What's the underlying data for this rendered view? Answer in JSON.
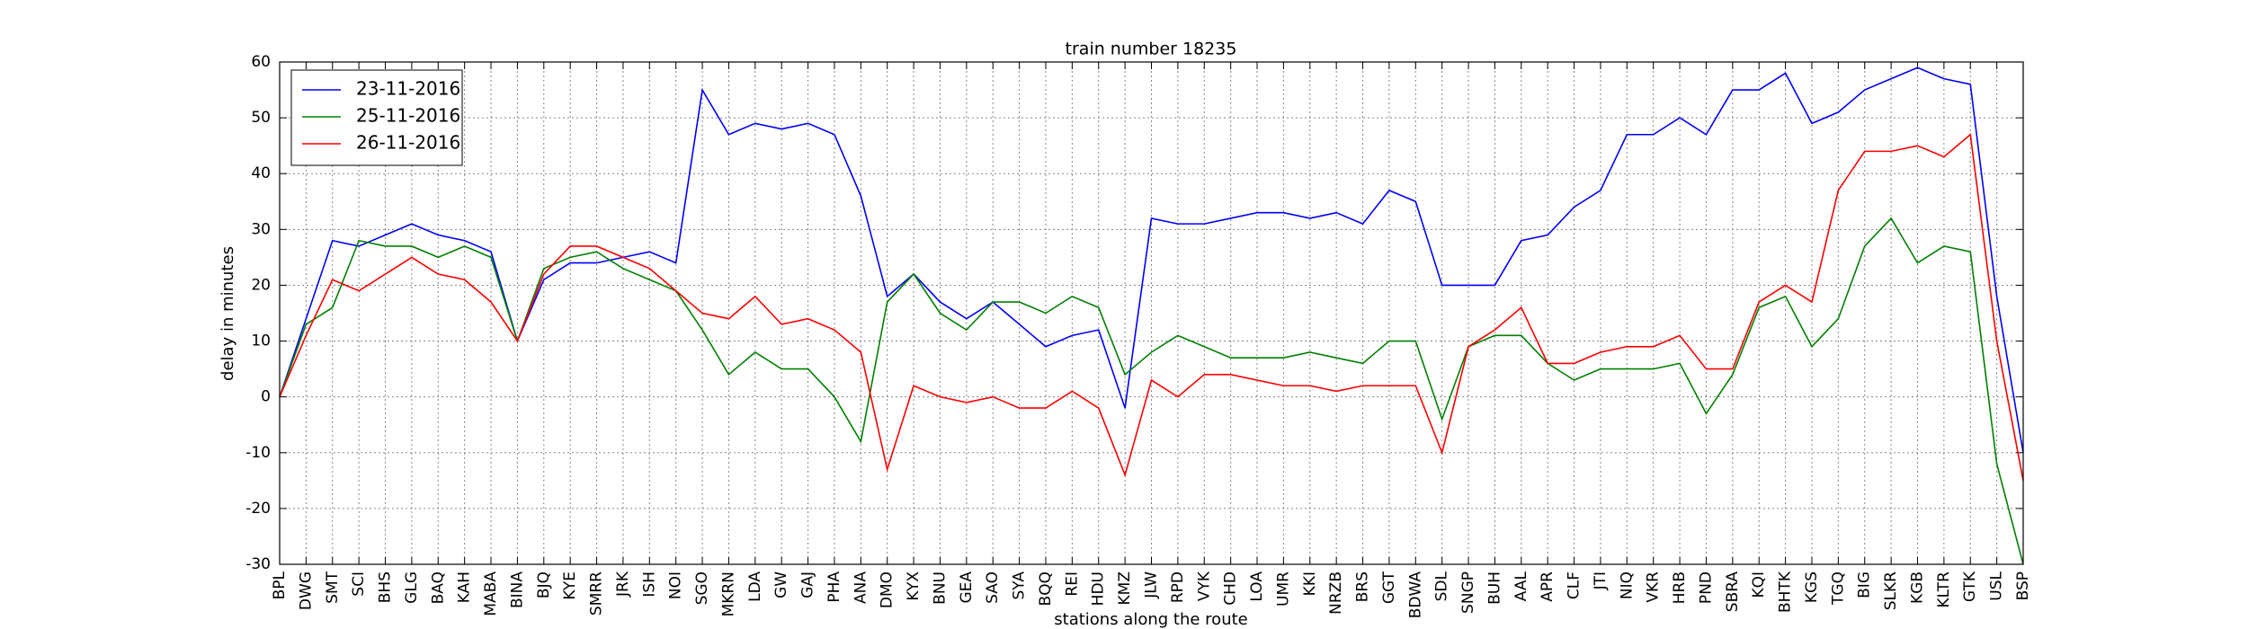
{
  "chart_data": {
    "type": "line",
    "title": "train number 18235",
    "x_label": "stations along the route",
    "y_label": "delay in minutes",
    "categories": [
      "BPL",
      "DWG",
      "SMT",
      "SCI",
      "BHS",
      "GLG",
      "BAQ",
      "KAH",
      "MABA",
      "BINA",
      "BJQ",
      "KYE",
      "SMRR",
      "JRK",
      "ISH",
      "NOI",
      "SGO",
      "MKRN",
      "LDA",
      "GW",
      "GAJ",
      "PHA",
      "ANA",
      "DMO",
      "KYX",
      "BNU",
      "GEA",
      "SAO",
      "SYA",
      "BQQ",
      "REI",
      "HDU",
      "KMZ",
      "JLW",
      "RPD",
      "VYK",
      "CHD",
      "LOA",
      "UMR",
      "KKI",
      "NRZB",
      "BRS",
      "GGT",
      "BDWA",
      "SDL",
      "SNGP",
      "BUH",
      "AAL",
      "APR",
      "CLF",
      "JTI",
      "NIQ",
      "VKR",
      "HRB",
      "PND",
      "SBRA",
      "KQI",
      "BHTK",
      "KGS",
      "TGQ",
      "BIG",
      "SLKR",
      "KGB",
      "KLTR",
      "GTK",
      "USL",
      "BSP"
    ],
    "series": [
      {
        "name": "23-11-2016",
        "color": "#0000ff",
        "values": [
          0,
          14,
          28,
          27,
          29,
          31,
          29,
          28,
          26,
          10,
          21,
          24,
          24,
          25,
          26,
          24,
          55,
          47,
          49,
          48,
          49,
          47,
          36,
          18,
          22,
          17,
          14,
          17,
          13,
          9,
          11,
          12,
          -2,
          32,
          31,
          31,
          32,
          33,
          33,
          32,
          33,
          31,
          37,
          35,
          20,
          20,
          20,
          28,
          29,
          34,
          37,
          47,
          47,
          50,
          47,
          55,
          55,
          58,
          49,
          51,
          55,
          57,
          59,
          57,
          56,
          18,
          -10
        ]
      },
      {
        "name": "25-11-2016",
        "color": "#008000",
        "values": [
          0,
          13,
          16,
          28,
          27,
          27,
          25,
          27,
          25,
          10,
          23,
          25,
          26,
          23,
          21,
          19,
          12,
          4,
          8,
          5,
          5,
          0,
          -8,
          17,
          22,
          15,
          12,
          17,
          17,
          15,
          18,
          16,
          4,
          8,
          11,
          9,
          7,
          7,
          7,
          8,
          7,
          6,
          10,
          10,
          -4,
          9,
          11,
          11,
          6,
          3,
          5,
          5,
          5,
          6,
          -3,
          4,
          16,
          18,
          9,
          14,
          27,
          32,
          24,
          27,
          26,
          -12,
          -30
        ]
      },
      {
        "name": "26-11-2016",
        "color": "#ff0000",
        "values": [
          0,
          11,
          21,
          19,
          22,
          25,
          22,
          21,
          17,
          10,
          22,
          27,
          27,
          25,
          23,
          19,
          15,
          14,
          18,
          13,
          14,
          12,
          8,
          -13,
          2,
          0,
          -1,
          0,
          -2,
          -2,
          1,
          -2,
          -14,
          3,
          0,
          4,
          4,
          3,
          2,
          2,
          1,
          2,
          2,
          2,
          -10,
          9,
          12,
          16,
          6,
          6,
          8,
          9,
          9,
          11,
          5,
          5,
          17,
          20,
          17,
          37,
          44,
          44,
          45,
          43,
          47,
          10,
          -15
        ]
      }
    ],
    "ylim": [
      -30,
      60
    ],
    "yticks": [
      -30,
      -20,
      -10,
      0,
      10,
      20,
      30,
      40,
      50,
      60
    ],
    "grid": true,
    "legend": "upper left"
  }
}
